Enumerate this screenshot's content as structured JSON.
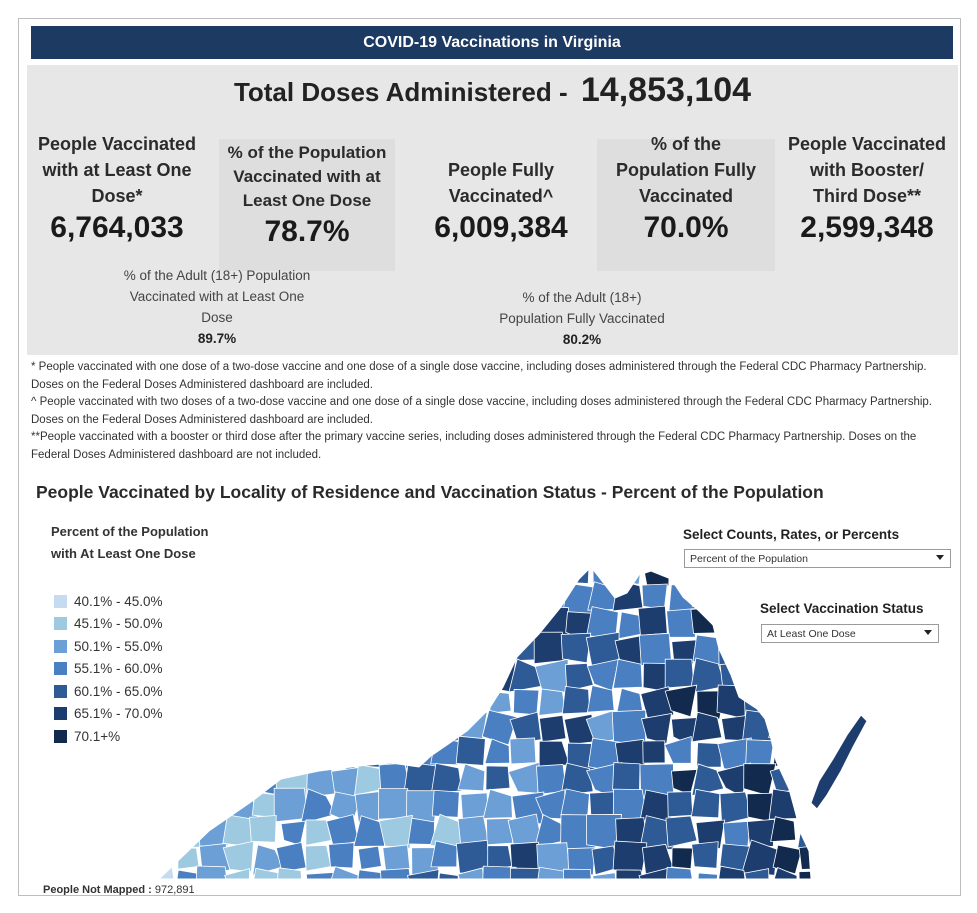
{
  "header": {
    "title": "COVID-19 Vaccinations in Virginia"
  },
  "total": {
    "label": "Total Doses Administered - ",
    "value": "14,853,104"
  },
  "metrics": [
    {
      "label_lines": [
        "People Vaccinated",
        "with at Least One",
        "Dose*"
      ],
      "value": "6,764,033"
    },
    {
      "label_lines": [
        "% of the Population",
        "Vaccinated with at",
        "Least One Dose"
      ],
      "value": "78.7%"
    },
    {
      "label_lines": [
        "People Fully",
        "Vaccinated^"
      ],
      "value": "6,009,384"
    },
    {
      "label_lines": [
        "% of the",
        "Population Fully",
        "Vaccinated"
      ],
      "value": "70.0%"
    },
    {
      "label_lines": [
        "People Vaccinated",
        "with Booster/",
        "Third Dose**"
      ],
      "value": "2,599,348"
    }
  ],
  "adult": [
    {
      "label_lines": [
        "% of the Adult (18+) Population",
        "Vaccinated with at Least One",
        "Dose"
      ],
      "value": "89.7%"
    },
    {
      "label_lines": [
        "% of the Adult (18+)",
        "Population Fully Vaccinated"
      ],
      "value": "80.2%"
    }
  ],
  "footnotes": [
    "* People vaccinated with one dose of a two-dose vaccine and one dose of a single dose vaccine, including doses administered through the Federal CDC Pharmacy Partnership.  Doses on the Federal Doses Administered dashboard are included.",
    "^ People vaccinated with two doses of a two-dose vaccine and one dose of a single dose vaccine, including doses administered through the Federal CDC Pharmacy Partnership.  Doses on the Federal Doses Administered dashboard are included.",
    "**People vaccinated with a booster or third dose after the primary vaccine series, including doses administered through the Federal CDC Pharmacy Partnership. Doses on the Federal Doses Administered dashboard are not included."
  ],
  "map_section": {
    "title": "People Vaccinated by Locality of Residence and Vaccination Status - Percent of the Population",
    "legend_title_lines": [
      "Percent of the Population",
      "with At Least One Dose"
    ],
    "legend": [
      {
        "label": "40.1% - 45.0%",
        "color": "#c6dbef"
      },
      {
        "label": "45.1% - 50.0%",
        "color": "#9ecae1"
      },
      {
        "label": "50.1% - 55.0%",
        "color": "#6b9fd6"
      },
      {
        "label": "55.1% - 60.0%",
        "color": "#4a7fc1"
      },
      {
        "label": "60.1% - 65.0%",
        "color": "#2e5a96"
      },
      {
        "label": "65.1% - 70.0%",
        "color": "#1c3d6e"
      },
      {
        "label": "70.1+%",
        "color": "#112a4d"
      }
    ],
    "controls": {
      "counts_label": "Select Counts, Rates, or Percents",
      "counts_value": "Percent of the Population",
      "status_label": "Select Vaccination Status",
      "status_value": "At Least One Dose"
    },
    "not_mapped": {
      "label": "People Not Mapped : ",
      "value": "972,891"
    }
  }
}
